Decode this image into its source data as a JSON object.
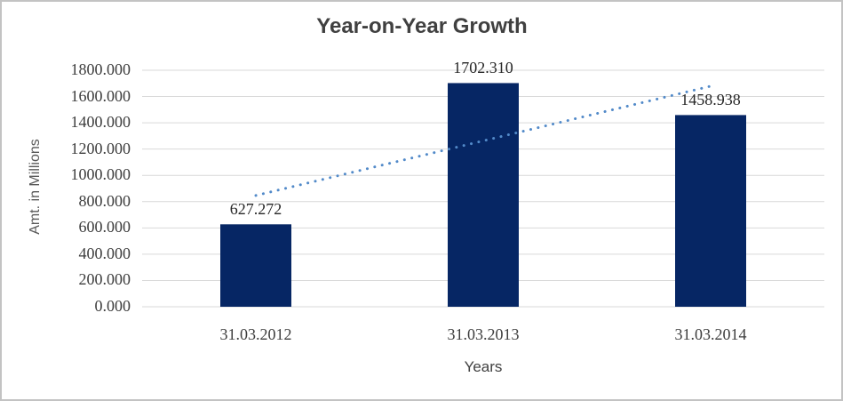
{
  "chart": {
    "title": "Year-on-Year Growth",
    "y_axis_title": "Amt. in Millions",
    "x_axis_title": "Years",
    "colors": {
      "bar": "#062664",
      "trendline": "#528ac9",
      "gridline": "#d9d9d9",
      "axis_line": "#d9d9d9",
      "title_text": "#404040",
      "tick_text": "#3d3d3d",
      "axis_title_text": "#595959",
      "frame_border": "#c3c3c3"
    }
  },
  "chart_data": {
    "type": "bar",
    "title": "Year-on-Year Growth",
    "xlabel": "Years",
    "ylabel": "Amt. in Millions",
    "categories": [
      "31.03.2012",
      "31.03.2013",
      "31.03.2014"
    ],
    "values": [
      627.272,
      1702.31,
      1458.938
    ],
    "data_labels": [
      "627.272",
      "1702.310",
      "1458.938"
    ],
    "ylim": [
      0,
      1800
    ],
    "ytick_step": 200,
    "ytick_labels": [
      "0.000",
      "200.000",
      "400.000",
      "600.000",
      "800.000",
      "1000.000",
      "1200.000",
      "1400.000",
      "1600.000",
      "1800.000"
    ],
    "grid": true,
    "legend": false,
    "trendline": {
      "style": "dotted",
      "start_value": 846.8,
      "end_value": 1678.8
    }
  }
}
